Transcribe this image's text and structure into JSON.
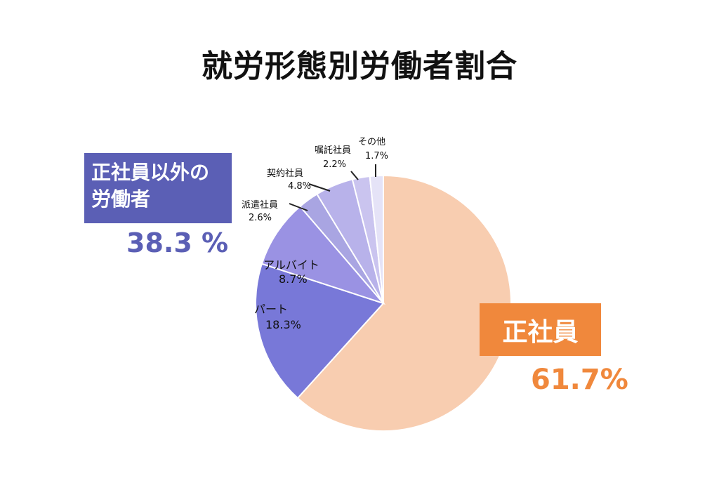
{
  "title": "就労形態別労働者割合",
  "groups": {
    "other": {
      "label_line1": "正社員以外の",
      "label_line2": "労働者",
      "percent": "38.3 %",
      "color": "#5b5fb5"
    },
    "seishain": {
      "label": "正社員",
      "percent": "61.7%",
      "color": "#f0883c"
    }
  },
  "chart_data": {
    "type": "pie",
    "title": "就労形態別労働者割合",
    "start": "12 o'clock, clockwise",
    "slices": [
      {
        "label": "正社員",
        "value": 61.7,
        "value_label": "",
        "color": "#f8cdb0"
      },
      {
        "label": "パート",
        "value": 18.3,
        "value_label": "18.3%",
        "color": "#7878d8"
      },
      {
        "label": "アルバイト",
        "value": 8.7,
        "value_label": "8.7%",
        "color": "#9a92e3"
      },
      {
        "label": "派遣社員",
        "value": 2.6,
        "value_label": "2.6%",
        "color": "#a9a5e2"
      },
      {
        "label": "契約社員",
        "value": 4.8,
        "value_label": "4.8%",
        "color": "#b8b2ea"
      },
      {
        "label": "嘱託社員",
        "value": 2.2,
        "value_label": "2.2%",
        "color": "#cac4ef"
      },
      {
        "label": "その他",
        "value": 1.7,
        "value_label": "1.7%",
        "color": "#e5e3f7"
      }
    ]
  }
}
